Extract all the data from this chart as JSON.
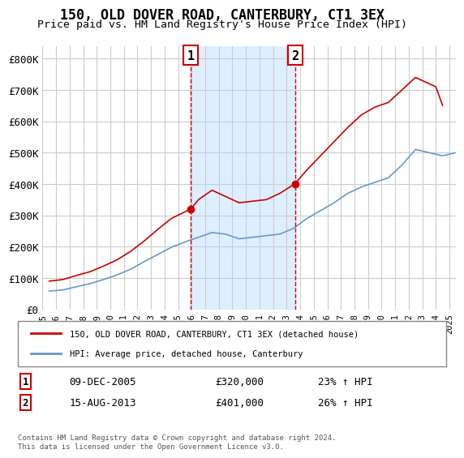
{
  "title": "150, OLD DOVER ROAD, CANTERBURY, CT1 3EX",
  "subtitle": "Price paid vs. HM Land Registry's House Price Index (HPI)",
  "ylabel_ticks": [
    "£0",
    "£100K",
    "£200K",
    "£300K",
    "£400K",
    "£500K",
    "£600K",
    "£700K",
    "£800K"
  ],
  "ylim": [
    0,
    840000
  ],
  "xlim_start": 1995.0,
  "xlim_end": 2025.5,
  "transaction1_x": 2005.94,
  "transaction1_y": 320000,
  "transaction1_label": "1",
  "transaction1_date": "09-DEC-2005",
  "transaction1_price": "£320,000",
  "transaction1_hpi": "23% ↑ HPI",
  "transaction2_x": 2013.62,
  "transaction2_y": 401000,
  "transaction2_label": "2",
  "transaction2_date": "15-AUG-2013",
  "transaction2_price": "£401,000",
  "transaction2_hpi": "26% ↑ HPI",
  "line1_color": "#cc0000",
  "line2_color": "#6699cc",
  "shade_color": "#ddeeff",
  "grid_color": "#cccccc",
  "bg_color": "#ffffff",
  "legend1_label": "150, OLD DOVER ROAD, CANTERBURY, CT1 3EX (detached house)",
  "legend2_label": "HPI: Average price, detached house, Canterbury",
  "footer": "Contains HM Land Registry data © Crown copyright and database right 2024.\nThis data is licensed under the Open Government Licence v3.0.",
  "years": [
    1995,
    1996,
    1997,
    1998,
    1999,
    2000,
    2001,
    2002,
    2003,
    2004,
    2005,
    2006,
    2007,
    2008,
    2009,
    2010,
    2011,
    2012,
    2013,
    2014,
    2015,
    2016,
    2017,
    2018,
    2019,
    2020,
    2021,
    2022,
    2023,
    2024,
    2025
  ],
  "hpi_values": [
    58000,
    62000,
    72000,
    82000,
    95000,
    110000,
    128000,
    152000,
    175000,
    198000,
    215000,
    230000,
    245000,
    240000,
    225000,
    230000,
    235000,
    240000,
    258000,
    290000,
    315000,
    340000,
    370000,
    390000,
    405000,
    420000,
    460000,
    510000,
    500000,
    490000,
    500000
  ],
  "price_values_x": [
    1995.5,
    1996.5,
    1997.5,
    1998.5,
    1999.5,
    2000.5,
    2001.5,
    2002.5,
    2003.5,
    2004.5,
    2005.94,
    2006.5,
    2007.5,
    2008.5,
    2009.5,
    2010.5,
    2011.5,
    2012.5,
    2013.62,
    2014.5,
    2015.5,
    2016.5,
    2017.5,
    2018.5,
    2019.5,
    2020.5,
    2021.5,
    2022.5,
    2023.5,
    2024.0,
    2024.5
  ],
  "price_values_y": [
    90000,
    95000,
    108000,
    120000,
    138000,
    158000,
    185000,
    218000,
    255000,
    290000,
    320000,
    350000,
    380000,
    360000,
    340000,
    345000,
    350000,
    370000,
    401000,
    445000,
    490000,
    535000,
    580000,
    620000,
    645000,
    660000,
    700000,
    740000,
    720000,
    710000,
    650000
  ]
}
